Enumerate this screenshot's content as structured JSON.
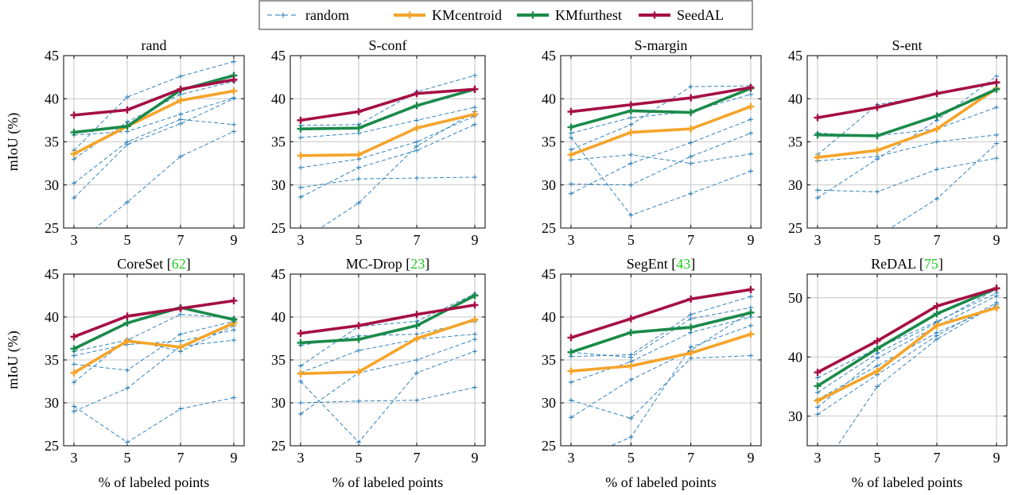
{
  "legend": {
    "placement": "top-center",
    "entries": [
      {
        "name": "random",
        "color": "#1f77b4",
        "style": "dashed-plus"
      },
      {
        "name": "KMcentroid",
        "color": "#f5a42a",
        "style": "solid-plus"
      },
      {
        "name": "KMfurthest",
        "color": "#1a8a4a",
        "style": "solid-plus"
      },
      {
        "name": "SeedAL",
        "color": "#a50f44",
        "style": "solid-plus"
      }
    ]
  },
  "colors": {
    "random": "#1f77b4",
    "KMcentroid": "#f5a42a",
    "KMfurthest": "#1a8a4a",
    "SeedAL": "#a50f44",
    "grid": "#b8b8b8",
    "citation": "#22cc22"
  },
  "chart_data": [
    {
      "type": "line",
      "title": "rand",
      "title_ref": "",
      "xlabel": "",
      "ylabel": "mIoU (%)",
      "x": [
        3,
        5,
        7,
        9
      ],
      "ylim": [
        25,
        45
      ],
      "yticks": [
        25,
        30,
        35,
        40,
        45
      ],
      "grid": true,
      "random_runs": [
        [
          28.5,
          34.7,
          37.1,
          40.0
        ],
        [
          30.2,
          35.0,
          37.6,
          37.0
        ],
        [
          33.0,
          37.3,
          40.5,
          42.0
        ],
        [
          34.0,
          40.2,
          42.6,
          44.3
        ],
        [
          23.0,
          28.0,
          33.3,
          36.2
        ],
        [
          35.8,
          36.2,
          38.2,
          40.1
        ]
      ],
      "series": [
        {
          "name": "KMcentroid",
          "values": [
            33.6,
            36.8,
            39.8,
            40.9
          ]
        },
        {
          "name": "KMfurthest",
          "values": [
            36.1,
            36.8,
            41.0,
            42.7
          ]
        },
        {
          "name": "SeedAL",
          "values": [
            38.1,
            38.7,
            41.1,
            42.2
          ]
        }
      ]
    },
    {
      "type": "line",
      "title": "S-conf",
      "title_ref": "",
      "xlabel": "",
      "ylabel": "",
      "x": [
        3,
        5,
        7,
        9
      ],
      "ylim": [
        25,
        45
      ],
      "yticks": [
        25,
        30,
        35,
        40,
        45
      ],
      "grid": true,
      "random_runs": [
        [
          28.6,
          32.0,
          34.0,
          37.0
        ],
        [
          29.7,
          30.7,
          30.8,
          30.9
        ],
        [
          32.0,
          33.0,
          35.0,
          38.0
        ],
        [
          35.5,
          36.0,
          37.5,
          39.0
        ],
        [
          36.9,
          37.0,
          40.8,
          42.7
        ],
        [
          23.5,
          27.9,
          34.5,
          38.5
        ]
      ],
      "series": [
        {
          "name": "KMcentroid",
          "values": [
            33.4,
            33.5,
            36.6,
            38.2
          ]
        },
        {
          "name": "KMfurthest",
          "values": [
            36.5,
            36.6,
            39.2,
            41.1
          ]
        },
        {
          "name": "SeedAL",
          "values": [
            37.5,
            38.5,
            40.6,
            41.1
          ]
        }
      ]
    },
    {
      "type": "line",
      "title": "S-margin",
      "title_ref": "",
      "xlabel": "",
      "ylabel": "",
      "x": [
        3,
        5,
        7,
        9
      ],
      "ylim": [
        25,
        45
      ],
      "yticks": [
        25,
        30,
        35,
        40,
        45
      ],
      "grid": true,
      "random_runs": [
        [
          29.0,
          32.5,
          34.9,
          37.6
        ],
        [
          30.1,
          30.0,
          33.3,
          36.0
        ],
        [
          32.9,
          33.5,
          32.5,
          33.6
        ],
        [
          34.1,
          37.0,
          41.4,
          41.5
        ],
        [
          35.5,
          26.5,
          29.0,
          31.6
        ],
        [
          36.0,
          37.8,
          38.5,
          40.5
        ]
      ],
      "series": [
        {
          "name": "KMcentroid",
          "values": [
            33.5,
            36.1,
            36.5,
            39.1
          ]
        },
        {
          "name": "KMfurthest",
          "values": [
            36.7,
            38.6,
            38.4,
            41.2
          ]
        },
        {
          "name": "SeedAL",
          "values": [
            38.5,
            39.3,
            40.1,
            41.3
          ]
        }
      ]
    },
    {
      "type": "line",
      "title": "S-ent",
      "title_ref": "",
      "xlabel": "",
      "ylabel": "",
      "x": [
        3,
        5,
        7,
        9
      ],
      "ylim": [
        25,
        45
      ],
      "yticks": [
        25,
        30,
        35,
        40,
        45
      ],
      "grid": true,
      "random_runs": [
        [
          28.5,
          33.0,
          37.5,
          42.6
        ],
        [
          29.4,
          29.2,
          31.8,
          33.1
        ],
        [
          32.8,
          33.3,
          35.0,
          35.8
        ],
        [
          33.5,
          39.3,
          40.5,
          41.8
        ],
        [
          36.0,
          35.7,
          36.5,
          39.0
        ],
        [
          21.0,
          24.0,
          28.4,
          34.8
        ]
      ],
      "series": [
        {
          "name": "KMcentroid",
          "values": [
            33.2,
            34.0,
            36.5,
            41.2
          ]
        },
        {
          "name": "KMfurthest",
          "values": [
            35.8,
            35.7,
            38.0,
            41.1
          ]
        },
        {
          "name": "SeedAL",
          "values": [
            37.8,
            39.0,
            40.6,
            41.9
          ]
        }
      ]
    },
    {
      "type": "line",
      "title": "CoreSet",
      "title_ref": "[62]",
      "xlabel": "% of labeled points",
      "ylabel": "mIoU (%)",
      "x": [
        3,
        5,
        7,
        9
      ],
      "ylim": [
        25,
        45
      ],
      "yticks": [
        25,
        30,
        35,
        40,
        45
      ],
      "grid": true,
      "random_runs": [
        [
          29.0,
          31.7,
          36.6,
          37.3
        ],
        [
          32.4,
          37.4,
          36.0,
          39.0
        ],
        [
          29.6,
          25.4,
          29.3,
          30.6
        ],
        [
          34.5,
          33.8,
          38.0,
          39.5
        ],
        [
          36.0,
          37.3,
          40.3,
          39.9
        ],
        [
          35.5,
          36.8,
          37.2,
          38.5
        ]
      ],
      "series": [
        {
          "name": "KMcentroid",
          "values": [
            33.5,
            37.2,
            36.5,
            39.3
          ]
        },
        {
          "name": "KMfurthest",
          "values": [
            36.3,
            39.3,
            41.1,
            39.7
          ]
        },
        {
          "name": "SeedAL",
          "values": [
            37.7,
            40.1,
            41.0,
            41.9
          ]
        }
      ]
    },
    {
      "type": "line",
      "title": "MC-Drop",
      "title_ref": "[23]",
      "xlabel": "% of labeled points",
      "ylabel": "",
      "x": [
        3,
        5,
        7,
        9
      ],
      "ylim": [
        25,
        45
      ],
      "yticks": [
        25,
        30,
        35,
        40,
        45
      ],
      "grid": true,
      "random_runs": [
        [
          28.7,
          33.5,
          35.0,
          37.4
        ],
        [
          30.0,
          30.2,
          30.3,
          31.8
        ],
        [
          33.5,
          36.1,
          37.4,
          38.0
        ],
        [
          34.3,
          38.9,
          39.5,
          42.7
        ],
        [
          32.5,
          25.4,
          33.5,
          36.0
        ],
        [
          36.7,
          37.8,
          38.0,
          39.5
        ]
      ],
      "series": [
        {
          "name": "KMcentroid",
          "values": [
            33.4,
            33.6,
            37.5,
            39.7
          ]
        },
        {
          "name": "KMfurthest",
          "values": [
            37.0,
            37.4,
            39.0,
            42.5
          ]
        },
        {
          "name": "SeedAL",
          "values": [
            38.1,
            39.0,
            40.3,
            41.4
          ]
        }
      ]
    },
    {
      "type": "line",
      "title": "SegEnt",
      "title_ref": "[43]",
      "xlabel": "% of labeled points",
      "ylabel": "",
      "x": [
        3,
        5,
        7,
        9
      ],
      "ylim": [
        25,
        45
      ],
      "yticks": [
        25,
        30,
        35,
        40,
        45
      ],
      "grid": true,
      "random_runs": [
        [
          28.3,
          32.7,
          36.1,
          40.6
        ],
        [
          30.3,
          28.2,
          35.2,
          35.5
        ],
        [
          32.4,
          34.8,
          38.2,
          40.0
        ],
        [
          35.4,
          35.6,
          40.3,
          42.4
        ],
        [
          35.9,
          35.3,
          39.8,
          41.1
        ],
        [
          23.0,
          26.0,
          36.5,
          39.0
        ]
      ],
      "series": [
        {
          "name": "KMcentroid",
          "values": [
            33.7,
            34.3,
            35.8,
            38.0
          ]
        },
        {
          "name": "KMfurthest",
          "values": [
            35.9,
            38.2,
            38.8,
            40.5
          ]
        },
        {
          "name": "SeedAL",
          "values": [
            37.6,
            39.8,
            42.1,
            43.2
          ]
        }
      ]
    },
    {
      "type": "line",
      "title": "ReDAL",
      "title_ref": "[75]",
      "xlabel": "% of labeled points",
      "ylabel": "",
      "x": [
        3,
        5,
        7,
        9
      ],
      "ylim": [
        25,
        54
      ],
      "yticks": [
        30,
        40,
        50
      ],
      "grid": true,
      "random_runs": [
        [
          30.3,
          37.0,
          43.6,
          49.2
        ],
        [
          31.5,
          39.8,
          45.2,
          50.3
        ],
        [
          32.8,
          38.5,
          44.1,
          48.5
        ],
        [
          34.0,
          40.6,
          45.8,
          51.5
        ],
        [
          36.5,
          41.5,
          46.0,
          50.8
        ],
        [
          20.0,
          35.0,
          43.0,
          48.9
        ]
      ],
      "series": [
        {
          "name": "KMcentroid",
          "values": [
            32.6,
            37.6,
            45.3,
            48.3
          ]
        },
        {
          "name": "KMfurthest",
          "values": [
            35.1,
            41.4,
            47.3,
            51.6
          ]
        },
        {
          "name": "SeedAL",
          "values": [
            37.4,
            42.7,
            48.6,
            51.6
          ]
        }
      ]
    }
  ]
}
